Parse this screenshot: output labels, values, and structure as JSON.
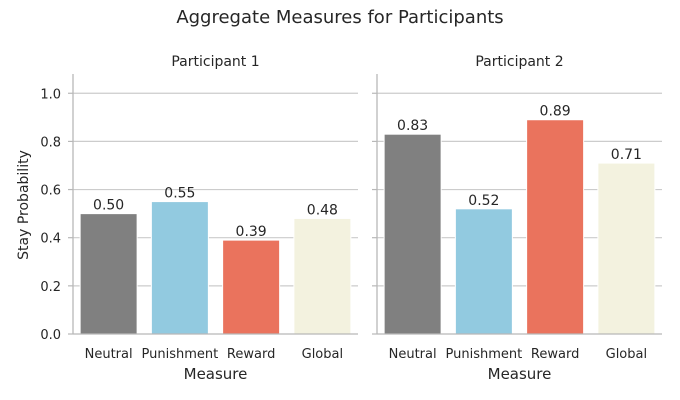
{
  "chart_data": {
    "type": "bar",
    "title": "Aggregate Measures for Participants",
    "ylabel": "Stay Probability",
    "xlabel": "Measure",
    "ylim": [
      0,
      1.08
    ],
    "yticks": [
      0.0,
      0.2,
      0.4,
      0.6,
      0.8,
      1.0
    ],
    "ytick_labels": [
      "0.0",
      "0.2",
      "0.4",
      "0.6",
      "0.8",
      "1.0"
    ],
    "grid": "horizontal",
    "categories": [
      "Neutral",
      "Punishment",
      "Reward",
      "Global"
    ],
    "colors": [
      "#808080",
      "#92cae0",
      "#ea735d",
      "#f3f2df"
    ],
    "panels": [
      {
        "name": "Participant 1",
        "values": [
          0.5,
          0.55,
          0.39,
          0.48
        ],
        "labels": [
          "0.50",
          "0.55",
          "0.39",
          "0.48"
        ]
      },
      {
        "name": "Participant 2",
        "values": [
          0.83,
          0.52,
          0.89,
          0.71
        ],
        "labels": [
          "0.83",
          "0.52",
          "0.89",
          "0.71"
        ]
      }
    ]
  }
}
